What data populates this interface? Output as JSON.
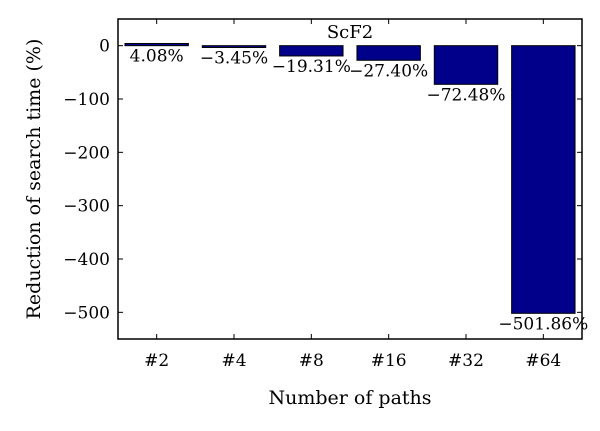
{
  "chart_data": {
    "type": "bar",
    "title": "ScF2",
    "xlabel": "Number of paths",
    "ylabel": "Reduction of search time (%)",
    "categories": [
      "#2",
      "#4",
      "#8",
      "#16",
      "#32",
      "#64"
    ],
    "values": [
      4.08,
      -3.45,
      -19.31,
      -27.4,
      -72.48,
      -501.86
    ],
    "value_labels": [
      "4.08%",
      "−3.45%",
      "−19.31%",
      "−27.40%",
      "−72.48%",
      "−501.86%"
    ],
    "yticks": [
      0,
      -100,
      -200,
      -300,
      -400,
      -500
    ],
    "ytick_labels": [
      "0",
      "−100",
      "−200",
      "−300",
      "−400",
      "−500"
    ],
    "ylim": [
      -550,
      50
    ],
    "bar_color": "#00008b",
    "grid": false
  }
}
